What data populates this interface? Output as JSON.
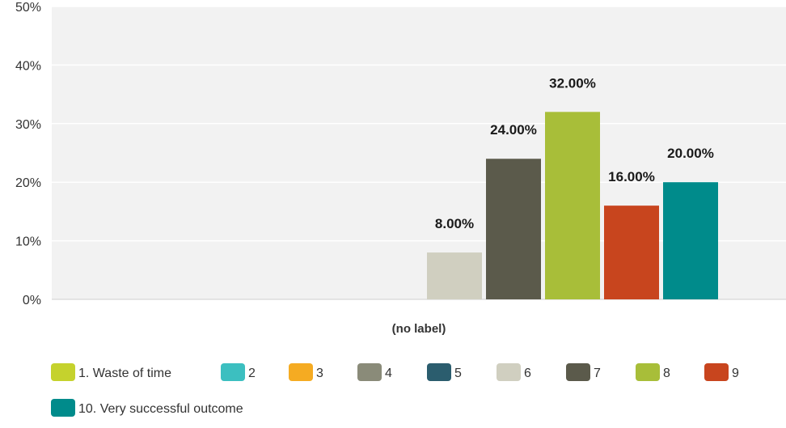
{
  "chart_data": {
    "type": "bar",
    "categories": [
      "(no label)"
    ],
    "ylim": [
      0,
      50
    ],
    "yticks": [
      0,
      10,
      20,
      30,
      40,
      50
    ],
    "ytick_labels": [
      "0%",
      "10%",
      "20%",
      "30%",
      "40%",
      "50%"
    ],
    "grid": true,
    "legend_position": "bottom",
    "series": [
      {
        "name": "1. Waste of time",
        "values": [
          0
        ],
        "color": "#c5d22d",
        "label": ""
      },
      {
        "name": "2",
        "values": [
          0
        ],
        "color": "#3cbfc0",
        "label": ""
      },
      {
        "name": "3",
        "values": [
          0
        ],
        "color": "#f5ab22",
        "label": ""
      },
      {
        "name": "4",
        "values": [
          0
        ],
        "color": "#8a8b79",
        "label": ""
      },
      {
        "name": "5",
        "values": [
          0
        ],
        "color": "#2b5d6e",
        "label": ""
      },
      {
        "name": "6",
        "values": [
          8
        ],
        "color": "#d0cfc0",
        "label": "8.00%"
      },
      {
        "name": "7",
        "values": [
          24
        ],
        "color": "#5b5a4b",
        "label": "24.00%"
      },
      {
        "name": "8",
        "values": [
          32
        ],
        "color": "#a8be39",
        "label": "32.00%"
      },
      {
        "name": "9",
        "values": [
          16
        ],
        "color": "#c8451e",
        "label": "16.00%"
      },
      {
        "name": "10. Very successful outcome",
        "values": [
          20
        ],
        "color": "#008b8b",
        "label": "20.00%"
      }
    ]
  },
  "colors": {
    "plot_background": "#f2f2f2",
    "gridline": "#ffffff",
    "axis_line": "#cfcfcf"
  }
}
